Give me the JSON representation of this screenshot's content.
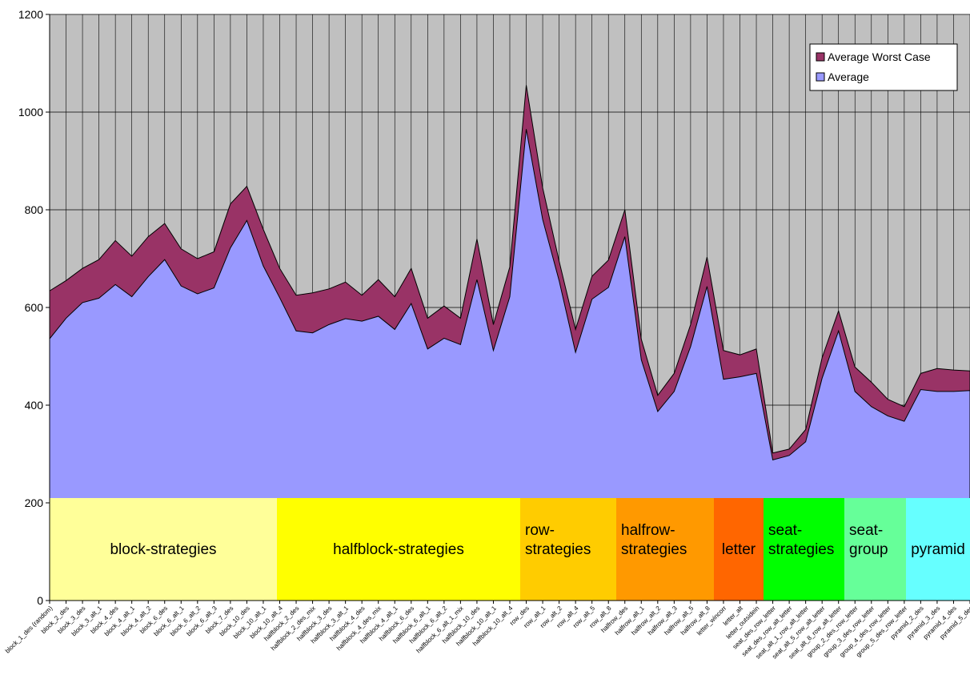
{
  "chart_data": {
    "type": "area",
    "categories": [
      "block_1_des (random)",
      "block_2_des",
      "block_3_des",
      "block_3_alt_1",
      "block_4_des",
      "block_4_alt_1",
      "block_4_alt_2",
      "block_6_des",
      "block_6_alt_1",
      "block_6_alt_2",
      "block_6_alt_3",
      "block_7_des",
      "block_10_des",
      "block_10_alt_1",
      "block_10_alt_4",
      "halfblock_2_des",
      "halfblock_2_des_mix",
      "halfblock_3_des",
      "halfblock_3_alt_1",
      "halfblock_4_des",
      "halfblock_4_des_mix",
      "halfblock_4_alt_1",
      "halfblock_6_des",
      "halfblock_6_alt_1",
      "halfblock_6_alt_2",
      "halfblock_6_alt_1_mix",
      "halfblock_10_des",
      "halfblock_10_alt_1",
      "halfblock_10_alt_4",
      "row_des",
      "row_alt_1",
      "row_alt_2",
      "row_alt_4",
      "row_alt_5",
      "row_alt_8",
      "halfrow_des",
      "halfrow_alt_1",
      "halfrow_alt_2",
      "halfrow_alt_3",
      "halfrow_alt_5",
      "halfrow_alt_8",
      "letter_wincorr",
      "letter_alt",
      "letter_outsidein",
      "seat_des_row_letter",
      "seat_des_row_alt_letter",
      "seat_alt_1_row_alt_letter",
      "seat_alt_5_row_alt_letter",
      "seat_alt_8_row_alt_letter",
      "group_2_des_row_letter",
      "group_3_des_row_letter",
      "group_4_des_row_letter",
      "group_5_des_row_letter",
      "pyramid_2_des",
      "pyramid_3_des",
      "pyramid_4_des",
      "pyramid_5_des"
    ],
    "series": [
      {
        "name": "Average Worst Case",
        "color": "#993366",
        "values": [
          634,
          655,
          680,
          698,
          737,
          705,
          745,
          772,
          720,
          700,
          714,
          812,
          848,
          760,
          680,
          625,
          630,
          638,
          652,
          625,
          657,
          622,
          680,
          578,
          603,
          578,
          740,
          565,
          683,
          1055,
          845,
          695,
          555,
          664,
          697,
          800,
          535,
          420,
          465,
          565,
          703,
          512,
          503,
          515,
          302,
          310,
          350,
          497,
          593,
          478,
          447,
          412,
          397,
          465,
          475,
          472,
          470
        ]
      },
      {
        "name": "Average",
        "color": "#9999ff",
        "values": [
          536,
          578,
          610,
          619,
          647,
          622,
          663,
          698,
          644,
          628,
          640,
          722,
          778,
          685,
          620,
          552,
          548,
          565,
          577,
          572,
          582,
          555,
          608,
          515,
          537,
          524,
          657,
          512,
          622,
          965,
          780,
          655,
          508,
          617,
          641,
          745,
          493,
          387,
          428,
          520,
          643,
          453,
          458,
          465,
          288,
          297,
          325,
          455,
          552,
          428,
          397,
          378,
          367,
          432,
          428,
          428,
          430
        ]
      }
    ],
    "ylim": [
      0,
      1200
    ],
    "yticks": [
      0,
      200,
      400,
      600,
      800,
      1000,
      1200
    ],
    "grid": true,
    "legend": "top-right",
    "groups": [
      {
        "label": [
          "block-strategies"
        ],
        "color": "#ffff99"
      },
      {
        "label": [
          "halfblock-strategies"
        ],
        "color": "#ffff00"
      },
      {
        "label": [
          "row-",
          "strategies"
        ],
        "color": "#ffcc00"
      },
      {
        "label": [
          "halfrow-",
          "strategies"
        ],
        "color": "#ff9900"
      },
      {
        "label": [
          "letter"
        ],
        "color": "#ff6600"
      },
      {
        "label": [
          "seat-",
          "strategies"
        ],
        "color": "#00ff00"
      },
      {
        "label": [
          "seat-",
          "group"
        ],
        "color": "#66ff99"
      },
      {
        "label": [
          "pyramid"
        ],
        "color": "#66ffff"
      }
    ]
  }
}
